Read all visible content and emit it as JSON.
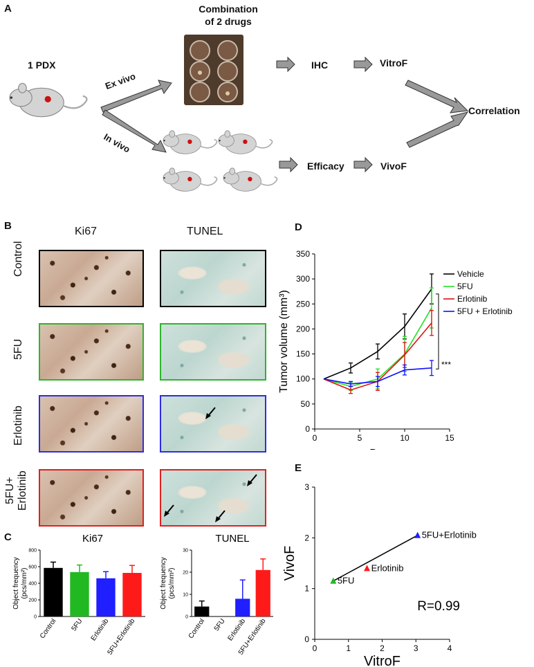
{
  "panelA": {
    "letter": "A",
    "pdx_label": "1 PDX",
    "combo_title_line1": "Combination",
    "combo_title_line2": "of 2 drugs",
    "ex_vivo": "Ex vivo",
    "in_vivo": "In vivo",
    "ihc": "IHC",
    "vitrof": "VitroF",
    "efficacy": "Efficacy",
    "vivof": "VivoF",
    "correlation": "Correlation"
  },
  "panelB": {
    "letter": "B",
    "col_headers": [
      "Ki67",
      "TUNEL"
    ],
    "rows": [
      {
        "label": "Control",
        "border": "#000000"
      },
      {
        "label": "5FU",
        "border": "#2db52d"
      },
      {
        "label": "Erlotinib",
        "border": "#2d2de0"
      },
      {
        "label": "5FU+",
        "label2": "Erlotinib",
        "border": "#e02020"
      }
    ]
  },
  "panelC": {
    "letter": "C"
  },
  "panelD": {
    "letter": "D"
  },
  "panelE": {
    "letter": "E"
  },
  "chart_data": [
    {
      "id": "C-ki67",
      "type": "bar",
      "title": "Ki67",
      "ylabel_line1": "Object frequency",
      "ylabel_line2": "(pcs/mm²)",
      "categories": [
        "Control",
        "5FU",
        "Erlotinib",
        "5FU+Erlotinib"
      ],
      "values": [
        585,
        535,
        460,
        525
      ],
      "errors": [
        70,
        85,
        80,
        90
      ],
      "colors": [
        "#000000",
        "#22b822",
        "#1f1fff",
        "#ff1a1a"
      ],
      "ylim": [
        0,
        800
      ],
      "ticks": [
        "0",
        "200",
        "400",
        "600",
        "800"
      ]
    },
    {
      "id": "C-tunel",
      "type": "bar",
      "title": "TUNEL",
      "ylabel_line1": "Object frequency",
      "ylabel_line2": "(pcs/mm²)",
      "categories": [
        "Control",
        "5FU",
        "Erlotinib",
        "5FU+Erlotinib"
      ],
      "values": [
        4.5,
        0,
        8,
        21
      ],
      "errors": [
        2.5,
        0,
        8.5,
        5
      ],
      "colors": [
        "#000000",
        "#22b822",
        "#1f1fff",
        "#ff1a1a"
      ],
      "ylim": [
        0,
        30
      ],
      "ticks": [
        "0",
        "10",
        "20",
        "30"
      ]
    },
    {
      "id": "D",
      "type": "line",
      "xlabel": "Days",
      "ylabel": "Tumor volume (mm³)",
      "xlim": [
        0,
        15
      ],
      "ylim": [
        0,
        350
      ],
      "xticks": [
        "0",
        "5",
        "10",
        "15"
      ],
      "yticks": [
        "0",
        "50",
        "100",
        "150",
        "200",
        "250",
        "300",
        "350"
      ],
      "x": [
        1,
        4,
        7,
        10,
        13
      ],
      "series": [
        {
          "name": "Vehicle",
          "color": "#000000",
          "values": [
            100,
            122,
            155,
            205,
            280
          ],
          "errors": [
            0,
            10,
            15,
            25,
            30
          ]
        },
        {
          "name": "5FU",
          "color": "#22e022",
          "values": [
            100,
            85,
            100,
            150,
            242
          ],
          "errors": [
            0,
            8,
            20,
            35,
            40
          ]
        },
        {
          "name": "Erlotinib",
          "color": "#e01010",
          "values": [
            100,
            78,
            95,
            148,
            212
          ],
          "errors": [
            0,
            7,
            18,
            25,
            25
          ]
        },
        {
          "name": "5FU + Erlotinib",
          "color": "#1010ff",
          "values": [
            100,
            90,
            95,
            118,
            122
          ],
          "errors": [
            0,
            5,
            10,
            10,
            15
          ]
        }
      ],
      "annotation": "***"
    },
    {
      "id": "E",
      "type": "scatter",
      "xlabel": "VitroF",
      "ylabel": "VivoF",
      "xlim": [
        0,
        4
      ],
      "ylim": [
        0,
        3
      ],
      "xticks": [
        "0",
        "1",
        "2",
        "3",
        "4"
      ],
      "yticks": [
        "0",
        "1",
        "2",
        "3"
      ],
      "points": [
        {
          "label": "5FU",
          "x": 0.55,
          "y": 1.15,
          "color": "#22b822"
        },
        {
          "label": "Erlotinib",
          "x": 1.55,
          "y": 1.4,
          "color": "#ff1a1a"
        },
        {
          "label": "5FU+Erlotinib",
          "x": 3.05,
          "y": 2.05,
          "color": "#1f1fff"
        }
      ],
      "annotation": "R=0.99"
    }
  ]
}
